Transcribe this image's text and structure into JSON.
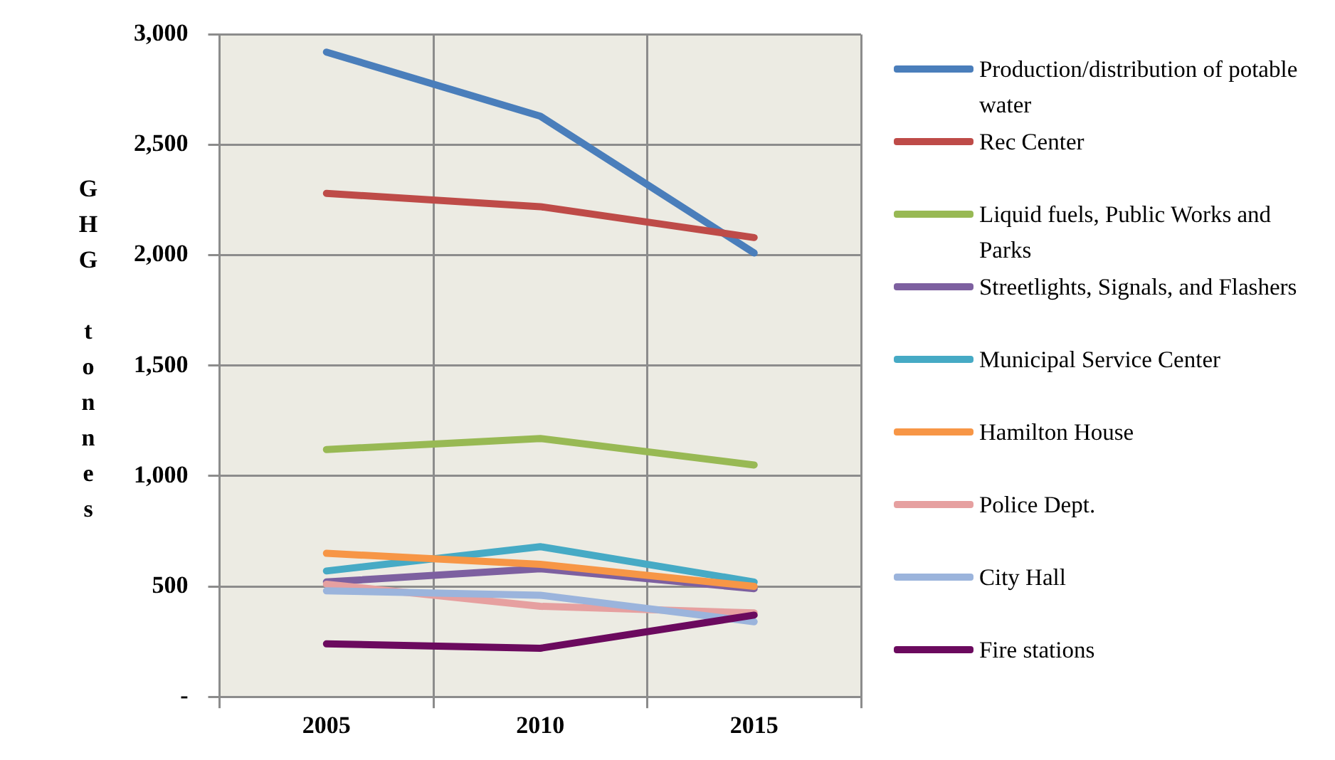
{
  "chart_data": {
    "type": "line",
    "ylabel": "GHG tonnes",
    "categories": [
      "2005",
      "2010",
      "2015"
    ],
    "series": [
      {
        "name": "Production/distribution of potable water",
        "color": "#4a7ebb",
        "values": [
          2920,
          2630,
          2010
        ]
      },
      {
        "name": "Rec Center",
        "color": "#be4b48",
        "values": [
          2280,
          2220,
          2080
        ]
      },
      {
        "name": "Liquid fuels, Public Works and Parks",
        "color": "#98b954",
        "values": [
          1120,
          1170,
          1050
        ]
      },
      {
        "name": "Streetlights, Signals, and Flashers",
        "color": "#7d60a0",
        "values": [
          520,
          580,
          490
        ]
      },
      {
        "name": "Municipal Service Center",
        "color": "#46aac5",
        "values": [
          570,
          680,
          520
        ]
      },
      {
        "name": "Hamilton House",
        "color": "#f79646",
        "values": [
          650,
          600,
          500
        ]
      },
      {
        "name": "Police Dept.",
        "color": "#e6a0a0",
        "values": [
          510,
          410,
          380
        ]
      },
      {
        "name": "City Hall",
        "color": "#9bb4dc",
        "values": [
          480,
          460,
          340
        ]
      },
      {
        "name": "Fire stations",
        "color": "#6b0a5e",
        "values": [
          240,
          220,
          370
        ]
      }
    ],
    "ylim": [
      0,
      3000
    ],
    "yticks": [
      {
        "value": 0,
        "label": "-"
      },
      {
        "value": 500,
        "label": "500"
      },
      {
        "value": 1000,
        "label": "1,000"
      },
      {
        "value": 1500,
        "label": "1,500"
      },
      {
        "value": 2000,
        "label": "2,000"
      },
      {
        "value": 2500,
        "label": "2,500"
      },
      {
        "value": 3000,
        "label": "3,000"
      }
    ],
    "grid": true,
    "legend": "right",
    "marker": "none",
    "line_style": "solid"
  }
}
